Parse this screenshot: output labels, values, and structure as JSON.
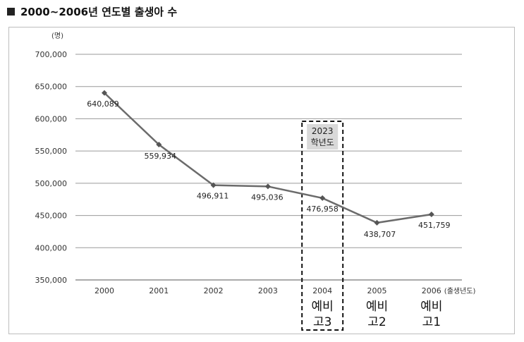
{
  "heading": {
    "title": "2000~2006년 연도별 출생아 수"
  },
  "chart_data": {
    "type": "line",
    "title": "2000~2006년 연도별 출생아 수",
    "y_unit": "(명)",
    "x_unit": "(출생년도)",
    "ylim": [
      350000,
      700000
    ],
    "yticks": [
      350000,
      400000,
      450000,
      500000,
      550000,
      600000,
      650000,
      700000
    ],
    "ytick_labels": [
      "350,000",
      "400,000",
      "450,000",
      "500,000",
      "550,000",
      "600,000",
      "650,000",
      "700,000"
    ],
    "categories": [
      "2000",
      "2001",
      "2002",
      "2003",
      "2004",
      "2005",
      "2006"
    ],
    "series": [
      {
        "values": [
          640089,
          559934,
          496911,
          495036,
          476958,
          438707,
          451759
        ],
        "labels": [
          "640,089",
          "559,934",
          "496,911",
          "495,036",
          "476,958",
          "438,707",
          "451,759"
        ]
      }
    ],
    "grid": true,
    "highlight": {
      "category": "2004",
      "label_line1": "2023",
      "label_line2": "학년도"
    },
    "annotations": [
      {
        "category": "2004",
        "line1": "예비",
        "line2": "고3"
      },
      {
        "category": "2005",
        "line1": "예비",
        "line2": "고2"
      },
      {
        "category": "2006",
        "line1": "예비",
        "line2": "고1"
      }
    ],
    "colors": {
      "line": "#6b6b6b",
      "grid": "#9a9a9a",
      "box_fill": "#d9d9d9"
    }
  }
}
